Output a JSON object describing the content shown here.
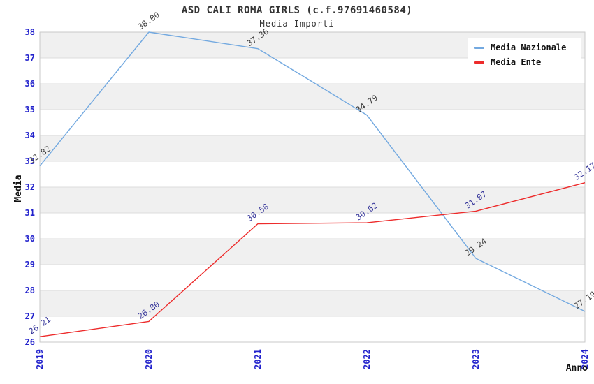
{
  "chart_data": {
    "type": "line",
    "title": "ASD CALI ROMA GIRLS (c.f.97691460584)",
    "subtitle": "Media Importi",
    "xlabel": "Anno",
    "ylabel": "Media",
    "x": [
      "2019",
      "2020",
      "2021",
      "2022",
      "2023",
      "2024"
    ],
    "ylim": [
      26,
      38
    ],
    "ytick_step": 1,
    "grid": "horizontal-alternating-bands",
    "legend_position": "top-right",
    "series": [
      {
        "name": "Media Nazionale",
        "color": "#73a9e0",
        "label_color": "#3d3d3d",
        "values": [
          32.82,
          38.0,
          37.36,
          34.79,
          29.24,
          27.19
        ]
      },
      {
        "name": "Media Ente",
        "color": "#ed2b2b",
        "label_color": "#333399",
        "values": [
          26.21,
          26.8,
          30.58,
          30.62,
          31.07,
          32.17
        ]
      }
    ],
    "colors": {
      "axis_tick_text": "#2222cc",
      "band_gray": "#f0f0f0",
      "band_white": "#ffffff",
      "gridline": "#dcdcdc",
      "plot_border": "#c9c9c9",
      "title_text": "#333333"
    }
  }
}
